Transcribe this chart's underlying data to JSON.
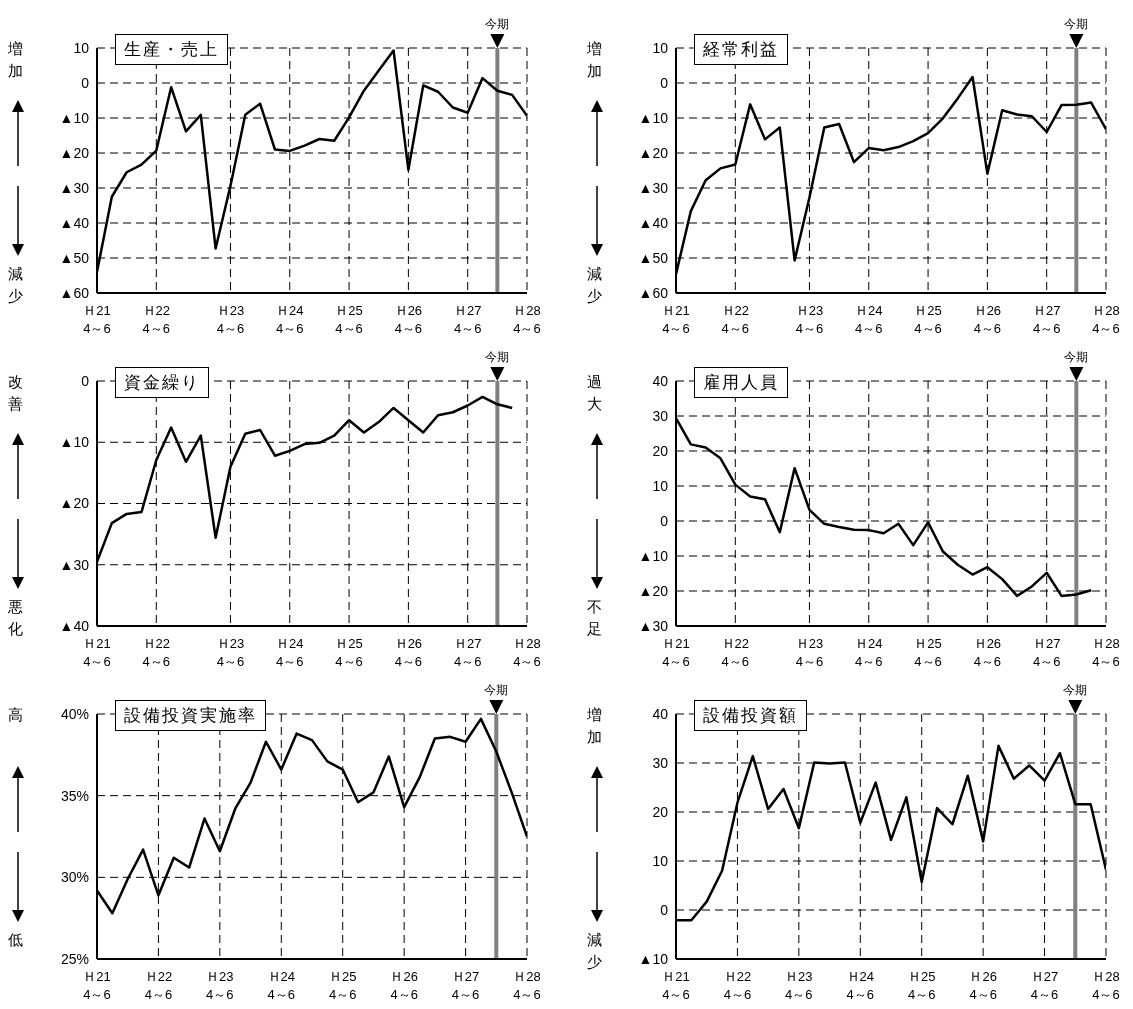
{
  "chart_data": [
    {
      "type": "line",
      "title": "生産・売上",
      "annotations": [
        "増加",
        "減少"
      ],
      "color": "#000000",
      "line_style": "solid",
      "marker": "none",
      "grid": true,
      "categories": [
        "Ｈ21 4～6",
        null,
        null,
        null,
        "Ｈ22 4～6",
        null,
        null,
        null,
        null,
        "Ｈ23 4～6",
        null,
        null,
        null,
        "Ｈ24 4～6",
        null,
        null,
        null,
        "Ｈ25 4～6",
        null,
        null,
        null,
        "Ｈ26 4～6",
        null,
        null,
        null,
        "Ｈ27 4～6",
        null,
        null,
        null,
        "Ｈ28 4～6"
      ],
      "values": [
        -54,
        -32.5,
        -25.5,
        -23.3,
        -19.3,
        -1.2,
        -13.8,
        -9.1,
        -47.3,
        -29.4,
        -9.1,
        -5.9,
        -19,
        -19.4,
        -17.9,
        -16,
        -16.5,
        -9.8,
        -2.2,
        3.6,
        9.3,
        -24.8,
        -0.7,
        -2.5,
        -7,
        -8.5,
        1.4,
        -2.2,
        -3.4,
        -9.4
      ],
      "ylim": [
        -60,
        10
      ],
      "yticks": [
        10,
        0,
        {
          "value": -10,
          "label": "▲10"
        },
        {
          "value": -20,
          "label": "▲20"
        },
        {
          "value": -30,
          "label": "▲30"
        },
        {
          "value": -40,
          "label": "▲40"
        },
        {
          "value": -50,
          "label": "▲50"
        },
        {
          "value": -60,
          "label": "▲60"
        }
      ],
      "ref_lines": [
        {
          "axis": "x",
          "label": "今期",
          "color": "#808080"
        }
      ]
    },
    {
      "type": "line",
      "title": "経常利益",
      "annotations": [
        "増加",
        "減少"
      ],
      "color": "#000000",
      "line_style": "solid",
      "marker": "none",
      "grid": true,
      "categories": [
        "Ｈ21 4～6",
        null,
        null,
        null,
        "Ｈ22 4～6",
        null,
        null,
        null,
        null,
        "Ｈ23 4～6",
        null,
        null,
        null,
        "Ｈ24 4～6",
        null,
        null,
        null,
        "Ｈ25 4～6",
        null,
        null,
        null,
        "Ｈ26 4～6",
        null,
        null,
        null,
        "Ｈ27 4～6",
        null,
        null,
        null,
        "Ｈ28 4～6"
      ],
      "values": [
        -54.6,
        -36.6,
        -27.8,
        -24.4,
        -23.3,
        -6.1,
        -16.1,
        -12.7,
        -50.7,
        -32.7,
        -12.7,
        -11.7,
        -22.6,
        -18.6,
        -19.2,
        -18.3,
        -16.6,
        -14.3,
        -10.1,
        -4.4,
        1.7,
        -25.9,
        -7.8,
        -9,
        -9.5,
        -14,
        -6.3,
        -6.2,
        -5.6,
        -13.2
      ],
      "ylim": [
        -60,
        10
      ],
      "yticks": [
        10,
        0,
        {
          "value": -10,
          "label": "▲10"
        },
        {
          "value": -20,
          "label": "▲20"
        },
        {
          "value": -30,
          "label": "▲30"
        },
        {
          "value": -40,
          "label": "▲40"
        },
        {
          "value": -50,
          "label": "▲50"
        },
        {
          "value": -60,
          "label": "▲60"
        }
      ],
      "ref_lines": [
        {
          "axis": "x",
          "label": "今期",
          "color": "#808080"
        }
      ]
    },
    {
      "type": "line",
      "title": "資金繰り",
      "annotations": [
        "改善",
        "悪化"
      ],
      "color": "#000000",
      "line_style": "solid",
      "marker": "none",
      "grid": true,
      "categories": [
        "Ｈ21 4～6",
        null,
        null,
        null,
        "Ｈ22 4～6",
        null,
        null,
        null,
        null,
        "Ｈ23 4～6",
        null,
        null,
        null,
        "Ｈ24 4～6",
        null,
        null,
        null,
        "Ｈ25 4～6",
        null,
        null,
        null,
        "Ｈ26 4～6",
        null,
        null,
        null,
        "Ｈ27 4～6",
        null,
        null,
        null,
        "Ｈ28 4～6"
      ],
      "values": [
        -29.5,
        -23.2,
        -21.7,
        -21.4,
        -12.9,
        -7.6,
        -13.2,
        -8.9,
        -25.6,
        -14,
        -8.6,
        -8,
        -12.2,
        -11.4,
        -10.3,
        -10.1,
        -8.9,
        -6.4,
        -8.4,
        -6.7,
        -4.4,
        -6.4,
        -8.4,
        -5.6,
        -5.1,
        -4,
        -2.6,
        -3.8,
        -4.4,
        null
      ],
      "ylim": [
        -40,
        0
      ],
      "yticks": [
        0,
        {
          "value": -10,
          "label": "▲10"
        },
        {
          "value": -20,
          "label": "▲20"
        },
        {
          "value": -30,
          "label": "▲30"
        },
        {
          "value": -40,
          "label": "▲40"
        }
      ],
      "ref_lines": [
        {
          "axis": "x",
          "label": "今期",
          "color": "#808080"
        }
      ]
    },
    {
      "type": "line",
      "title": "雇用人員",
      "annotations": [
        "過大",
        "不足"
      ],
      "color": "#000000",
      "line_style": "solid",
      "marker": "none",
      "grid": true,
      "categories": [
        "Ｈ21 4～6",
        null,
        null,
        null,
        "Ｈ22 4～6",
        null,
        null,
        null,
        null,
        "Ｈ23 4～6",
        null,
        null,
        null,
        "Ｈ24 4～6",
        null,
        null,
        null,
        "Ｈ25 4～6",
        null,
        null,
        null,
        "Ｈ26 4～6",
        null,
        null,
        null,
        "Ｈ27 4～6",
        null,
        null,
        null,
        "Ｈ28 4～6"
      ],
      "values": [
        29.4,
        21.9,
        21,
        17.9,
        10.4,
        7,
        6.2,
        -3.2,
        15.1,
        3.2,
        -0.8,
        -1.7,
        -2.5,
        -2.6,
        -3.5,
        -0.8,
        -6.9,
        -0.4,
        -8.7,
        -12.5,
        -15.3,
        -13.2,
        -16.6,
        -21.4,
        -18.7,
        -14.8,
        -21.4,
        -21,
        -19.8,
        null
      ],
      "ylim": [
        -30,
        40
      ],
      "yticks": [
        40,
        30,
        20,
        10,
        0,
        {
          "value": -10,
          "label": "▲10"
        },
        {
          "value": -20,
          "label": "▲20"
        },
        {
          "value": -30,
          "label": "▲30"
        }
      ],
      "ref_lines": [
        {
          "axis": "x",
          "label": "今期",
          "color": "#808080"
        }
      ]
    },
    {
      "type": "line",
      "title": "設備投資実施率",
      "annotations": [
        "高",
        "低"
      ],
      "color": "#000000",
      "line_style": "solid",
      "marker": "none",
      "grid": true,
      "categories": [
        "Ｈ21 4～6",
        null,
        null,
        null,
        "Ｈ22 4～6",
        null,
        null,
        null,
        "Ｈ23 4～6",
        null,
        null,
        null,
        "Ｈ24 4～6",
        null,
        null,
        null,
        "Ｈ25 4～6",
        null,
        null,
        null,
        "Ｈ26 4～6",
        null,
        null,
        null,
        "Ｈ27 4～6",
        null,
        null,
        null,
        "Ｈ28 4～6"
      ],
      "values": [
        29.2,
        27.8,
        29.9,
        31.7,
        28.9,
        31.2,
        30.6,
        33.6,
        31.6,
        34.2,
        35.8,
        38.3,
        36.6,
        38.8,
        38.4,
        37.1,
        36.6,
        34.6,
        35.2,
        37.4,
        34.3,
        36.1,
        38.5,
        38.6,
        38.3,
        39.7,
        37.7,
        35.2,
        32.5
      ],
      "ylim": [
        25,
        40
      ],
      "yticks": [
        {
          "value": 40,
          "label": "40%"
        },
        {
          "value": 35,
          "label": "35%"
        },
        {
          "value": 30,
          "label": "30%"
        },
        {
          "value": 25,
          "label": "25%"
        }
      ],
      "ref_lines": [
        {
          "axis": "x",
          "label": "今期",
          "color": "#808080"
        }
      ]
    },
    {
      "type": "line",
      "title": "設備投資額",
      "annotations": [
        "増加",
        "減少"
      ],
      "color": "#000000",
      "line_style": "solid",
      "marker": "none",
      "grid": true,
      "categories": [
        "Ｈ21 4～6",
        null,
        null,
        null,
        "Ｈ22 4～6",
        null,
        null,
        null,
        "Ｈ23 4～6",
        null,
        null,
        null,
        "Ｈ24 4～6",
        null,
        null,
        null,
        "Ｈ25 4～6",
        null,
        null,
        null,
        "Ｈ26 4～6",
        null,
        null,
        null,
        "Ｈ27 4～6",
        null,
        null,
        null,
        "Ｈ28 4～6"
      ],
      "values": [
        -2.1,
        -2.1,
        1.7,
        8,
        21.9,
        31.4,
        20.6,
        24.7,
        16.7,
        30.1,
        29.9,
        30.1,
        17.8,
        26,
        14.3,
        23,
        5.7,
        20.8,
        17.5,
        27.4,
        14,
        33.5,
        26.8,
        29.5,
        26.4,
        32,
        21.6,
        21.6,
        8.2
      ],
      "ylim": [
        -10,
        40
      ],
      "yticks": [
        40,
        30,
        20,
        10,
        0,
        {
          "value": -10,
          "label": "▲10"
        }
      ],
      "ref_lines": [
        {
          "axis": "x",
          "label": "今期",
          "color": "#808080"
        }
      ]
    }
  ]
}
